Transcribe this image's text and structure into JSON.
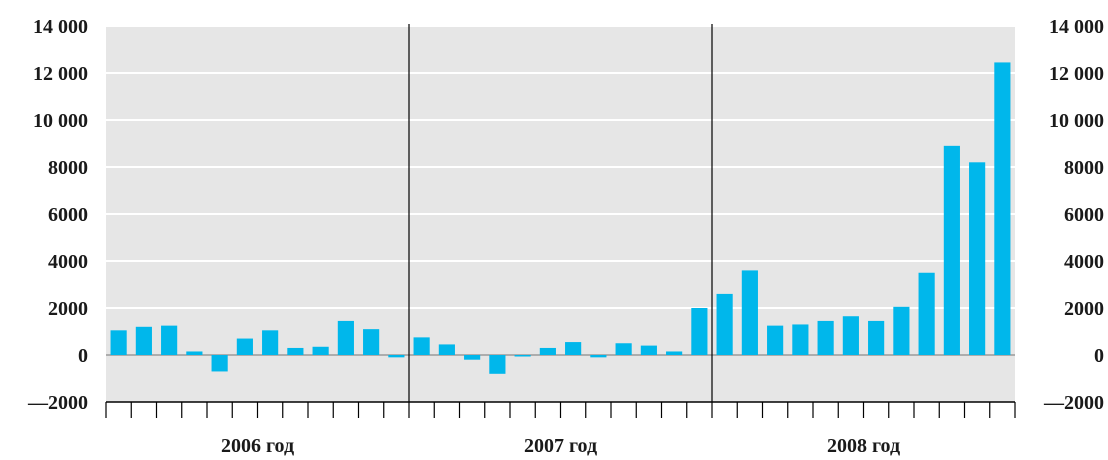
{
  "chart_data": {
    "type": "bar",
    "title": "",
    "xlabel": "",
    "ylabel": "",
    "ylim": [
      -2000,
      14000
    ],
    "yticks": [
      -2000,
      0,
      2000,
      4000,
      6000,
      8000,
      10000,
      12000,
      14000
    ],
    "ytick_labels": [
      "—2000",
      "0",
      "2000",
      "4000",
      "6000",
      "8000",
      "10 000",
      "12 000",
      "14 000"
    ],
    "grid": "horizontal",
    "dual_y_axis": true,
    "groups": [
      {
        "label": "2006 год",
        "count": 12
      },
      {
        "label": "2007 год",
        "count": 12
      },
      {
        "label": "2008 год",
        "count": 12
      }
    ],
    "series": [
      {
        "color": "#00b7eb",
        "values": [
          1050,
          1200,
          1250,
          150,
          -700,
          700,
          1050,
          300,
          350,
          1450,
          1100,
          -100,
          750,
          450,
          -200,
          -800,
          -50,
          300,
          550,
          -100,
          500,
          400,
          150,
          2000,
          2600,
          3600,
          1250,
          1300,
          1450,
          1650,
          1450,
          2050,
          3500,
          8900,
          8200,
          12450
        ]
      }
    ],
    "colors": {
      "bar": "#00b7eb",
      "plot_background": "#e6e6e6",
      "grid_line": "#ffffff",
      "separator": "#000000"
    }
  }
}
